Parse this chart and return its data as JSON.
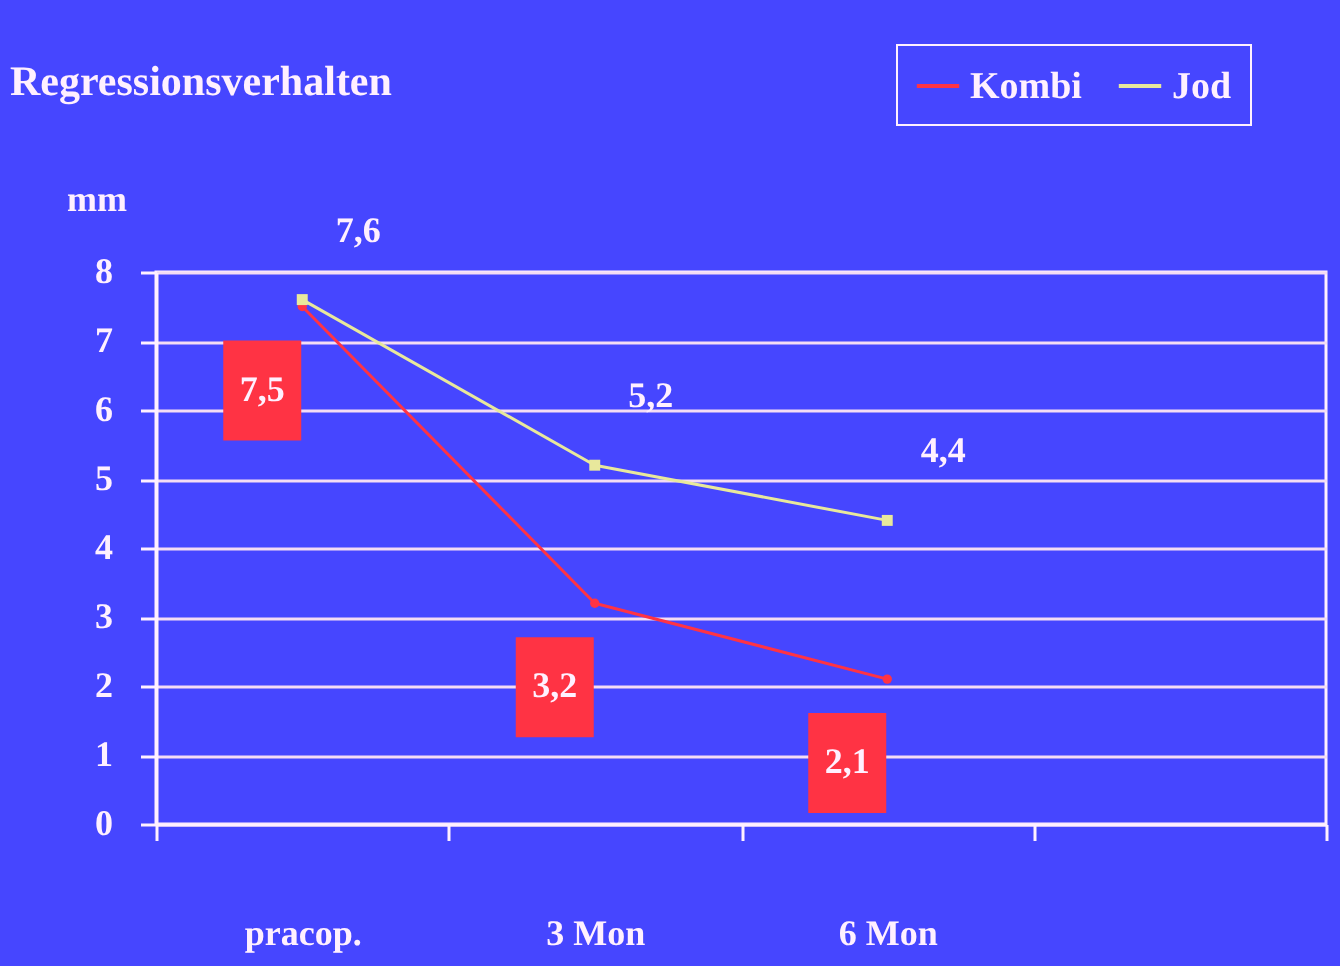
{
  "chart_data": {
    "type": "line",
    "title": "Regressionsverhalten",
    "ylabel": "mm",
    "categories": [
      "pracop.",
      "3 Mon",
      "6 Mon",
      null
    ],
    "series": [
      {
        "name": "Kombi",
        "color": "#ff3344",
        "marker": "circle",
        "values": [
          7.5,
          3.2,
          2.1,
          null
        ],
        "value_labels": [
          "7,5",
          "3,2",
          "2,1",
          null
        ]
      },
      {
        "name": "Jod",
        "color": "#e8e89c",
        "marker": "square",
        "values": [
          7.6,
          5.2,
          4.4,
          null
        ],
        "value_labels": [
          "7,6",
          "5,2",
          "4,4",
          null
        ]
      }
    ],
    "ylim": [
      0,
      8
    ],
    "yticks": [
      0,
      1,
      2,
      3,
      4,
      5,
      6,
      7,
      8
    ],
    "grid": "y",
    "legend": "top right"
  }
}
